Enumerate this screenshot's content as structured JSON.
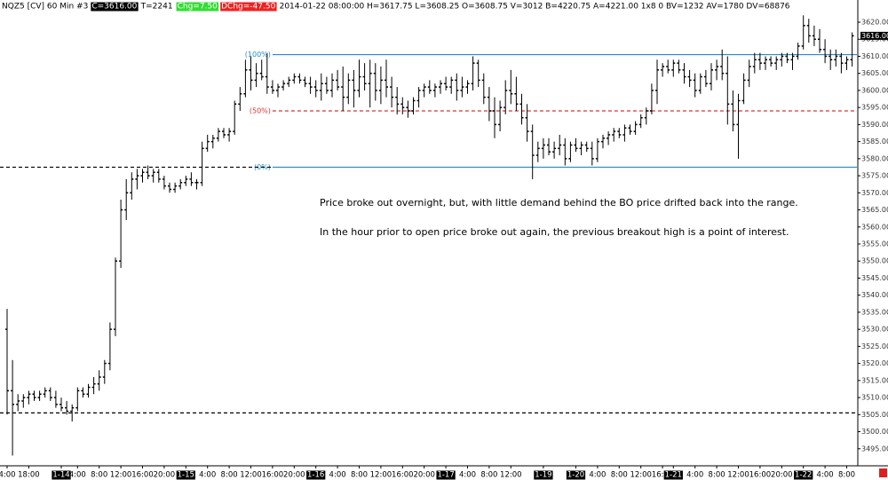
{
  "header": [
    {
      "text": "NQZ5 [CV]  60 Min  #3"
    },
    {
      "text": "C=3616.00",
      "bg": "#000000",
      "fg": "#ffffff"
    },
    {
      "text": "T=2241"
    },
    {
      "text": "Chg=7.50",
      "bg": "#33dd33",
      "fg": "#ffffff"
    },
    {
      "text": "DChg=-47.50",
      "bg": "#ee2222",
      "fg": "#ffffff"
    },
    {
      "text": "2014-01-22 08:00:00 H=3617.75 L=3608.25 O=3608.75 V=3012 B=4220.75 A=4221.00 1x8 0 BV=1232 AV=1780 DV=68876"
    }
  ],
  "chart_data": {
    "type": "ohlc",
    "color": "#000000",
    "categories": [
      "4:00",
      null,
      null,
      null,
      "18:00",
      null,
      null,
      null,
      null,
      null,
      "1-14",
      null,
      null,
      "4:00",
      null,
      null,
      null,
      "8:00",
      null,
      null,
      null,
      "12:00",
      null,
      null,
      null,
      "16:00",
      null,
      null,
      null,
      "20:00",
      null,
      null,
      null,
      "1-15",
      null,
      null,
      null,
      "4:00",
      null,
      null,
      null,
      "8:00",
      null,
      null,
      null,
      "12:00",
      null,
      null,
      null,
      "16:00",
      null,
      null,
      null,
      "20:00",
      null,
      null,
      null,
      "1-16",
      null,
      null,
      null,
      "4:00",
      null,
      null,
      null,
      "8:00",
      null,
      null,
      null,
      "12:00",
      null,
      null,
      null,
      "16:00",
      null,
      null,
      null,
      "20:00",
      null,
      null,
      null,
      "1-17",
      null,
      null,
      null,
      "4:00",
      null,
      null,
      null,
      "8:00",
      null,
      null,
      null,
      "12:00",
      null,
      null,
      null,
      null,
      null,
      "1-19",
      null,
      null,
      null,
      null,
      null,
      "1-20",
      null,
      null,
      null,
      "4:00",
      null,
      null,
      null,
      "8:00",
      null,
      null,
      null,
      "12:00",
      null,
      null,
      null,
      "16:00",
      null,
      "1-21",
      null,
      null,
      null,
      "4:00",
      null,
      null,
      null,
      "8:00",
      null,
      null,
      null,
      "12:00",
      null,
      null,
      null,
      "16:00",
      null,
      null,
      null,
      "20:00",
      null,
      null,
      null,
      "1-22",
      null,
      null,
      null,
      "4:00",
      null,
      null,
      null,
      "8:00",
      null
    ],
    "open": [
      3530,
      3512,
      3508,
      3509,
      3510,
      3511,
      3510,
      3511,
      3512,
      3510,
      3508,
      3507,
      3506,
      3507,
      3512,
      3511,
      3513,
      3514,
      3516,
      3520,
      3530,
      3550,
      3565,
      3570,
      3574,
      3575,
      3576,
      3575,
      3576,
      3574,
      3572,
      3571,
      3572,
      3573,
      3574,
      3573,
      3573,
      3583,
      3585,
      3586,
      3588,
      3587,
      3588,
      3596,
      3599,
      3606,
      3603,
      3605,
      3604,
      3601,
      3600,
      3601,
      3602,
      3603,
      3604,
      3603,
      3602,
      3601,
      3600,
      3602,
      3600,
      3603,
      3601,
      3598,
      3603,
      3600,
      3604,
      3602,
      3605,
      3600,
      3603,
      3601,
      3598,
      3596,
      3595,
      3594,
      3597,
      3600,
      3601,
      3600,
      3601,
      3602,
      3601,
      3603,
      3600,
      3601,
      3602,
      3608,
      3603,
      3598,
      3594,
      3590,
      3595,
      3600,
      3599,
      3596,
      3592,
      3588,
      3581,
      3583,
      3584,
      3582,
      3583,
      3584,
      3580,
      3584,
      3583,
      3584,
      3583,
      3580,
      3585,
      3586,
      3587,
      3588,
      3587,
      3589,
      3588,
      3590,
      3592,
      3594,
      3600,
      3606,
      3607,
      3606,
      3608,
      3606,
      3604,
      3603,
      3600,
      3604,
      3602,
      3606,
      3607,
      3605,
      3596,
      3590,
      3597,
      3603,
      3607,
      3609,
      3608,
      3609,
      3608,
      3609,
      3610,
      3609,
      3610,
      3613,
      3619,
      3616,
      3615,
      3612,
      3610,
      3609,
      3610,
      3608,
      3609
    ],
    "high": [
      3536,
      3521,
      3511,
      3511,
      3512,
      3512,
      3512,
      3513,
      3513,
      3512,
      3510,
      3509,
      3508,
      3513,
      3513,
      3514,
      3516,
      3518,
      3521,
      3532,
      3551,
      3568,
      3574,
      3576,
      3577,
      3577,
      3578,
      3577,
      3577,
      3575,
      3573,
      3573,
      3574,
      3575,
      3576,
      3574,
      3585,
      3587,
      3587,
      3589,
      3589,
      3589,
      3597,
      3601,
      3609,
      3610,
      3608,
      3609,
      3611,
      3603,
      3602,
      3603,
      3604,
      3605,
      3605,
      3604,
      3604,
      3603,
      3605,
      3604,
      3605,
      3606,
      3607,
      3605,
      3606,
      3609,
      3608,
      3609,
      3608,
      3607,
      3609,
      3604,
      3601,
      3598,
      3597,
      3598,
      3601,
      3602,
      3603,
      3602,
      3603,
      3604,
      3604,
      3605,
      3604,
      3603,
      3610,
      3609,
      3605,
      3601,
      3598,
      3597,
      3603,
      3606,
      3604,
      3599,
      3596,
      3590,
      3585,
      3586,
      3586,
      3585,
      3587,
      3586,
      3585,
      3586,
      3585,
      3585,
      3585,
      3586,
      3587,
      3588,
      3589,
      3589,
      3590,
      3590,
      3591,
      3593,
      3595,
      3602,
      3609,
      3608,
      3609,
      3609,
      3609,
      3608,
      3606,
      3605,
      3605,
      3606,
      3608,
      3609,
      3612,
      3610,
      3600,
      3599,
      3605,
      3609,
      3611,
      3611,
      3610,
      3610,
      3610,
      3611,
      3611,
      3611,
      3614,
      3622,
      3621,
      3619,
      3618,
      3615,
      3612,
      3612,
      3611,
      3610,
      3617
    ],
    "low": [
      3505,
      3493,
      3506,
      3507,
      3508,
      3509,
      3509,
      3510,
      3509,
      3507,
      3506,
      3505,
      3503,
      3506,
      3510,
      3510,
      3511,
      3512,
      3514,
      3518,
      3528,
      3548,
      3562,
      3568,
      3571,
      3573,
      3574,
      3573,
      3573,
      3571,
      3570,
      3570,
      3571,
      3572,
      3572,
      3571,
      3572,
      3582,
      3583,
      3585,
      3586,
      3585,
      3587,
      3594,
      3598,
      3600,
      3601,
      3603,
      3599,
      3599,
      3598,
      3600,
      3601,
      3602,
      3602,
      3601,
      3599,
      3598,
      3597,
      3599,
      3598,
      3600,
      3594,
      3596,
      3595,
      3598,
      3600,
      3595,
      3597,
      3596,
      3598,
      3595,
      3593,
      3593,
      3592,
      3593,
      3595,
      3598,
      3599,
      3598,
      3599,
      3600,
      3599,
      3597,
      3598,
      3599,
      3600,
      3601,
      3596,
      3591,
      3586,
      3588,
      3593,
      3596,
      3594,
      3590,
      3585,
      3574,
      3579,
      3580,
      3581,
      3580,
      3581,
      3578,
      3579,
      3582,
      3581,
      3582,
      3578,
      3579,
      3583,
      3584,
      3585,
      3586,
      3585,
      3587,
      3587,
      3589,
      3590,
      3593,
      3596,
      3604,
      3605,
      3604,
      3605,
      3602,
      3601,
      3598,
      3599,
      3601,
      3600,
      3603,
      3603,
      3590,
      3588,
      3580,
      3596,
      3601,
      3605,
      3606,
      3606,
      3607,
      3606,
      3607,
      3608,
      3606,
      3609,
      3612,
      3614,
      3613,
      3611,
      3608,
      3606,
      3607,
      3605,
      3606,
      3607
    ],
    "close": [
      3512,
      3508,
      3509,
      3510,
      3511,
      3510,
      3511,
      3512,
      3510,
      3508,
      3507,
      3506,
      3507,
      3512,
      3511,
      3513,
      3514,
      3516,
      3520,
      3530,
      3550,
      3565,
      3570,
      3574,
      3575,
      3576,
      3575,
      3576,
      3574,
      3572,
      3571,
      3572,
      3573,
      3574,
      3573,
      3573,
      3583,
      3585,
      3586,
      3588,
      3587,
      3588,
      3596,
      3599,
      3606,
      3603,
      3605,
      3604,
      3601,
      3600,
      3601,
      3602,
      3603,
      3604,
      3603,
      3602,
      3601,
      3600,
      3602,
      3600,
      3603,
      3601,
      3598,
      3603,
      3600,
      3604,
      3602,
      3605,
      3600,
      3603,
      3601,
      3598,
      3596,
      3595,
      3594,
      3597,
      3600,
      3601,
      3600,
      3601,
      3602,
      3601,
      3603,
      3600,
      3601,
      3602,
      3608,
      3603,
      3598,
      3594,
      3590,
      3595,
      3600,
      3599,
      3596,
      3592,
      3588,
      3581,
      3583,
      3584,
      3582,
      3583,
      3584,
      3580,
      3584,
      3583,
      3584,
      3583,
      3580,
      3585,
      3586,
      3587,
      3588,
      3587,
      3589,
      3588,
      3590,
      3592,
      3594,
      3600,
      3606,
      3607,
      3606,
      3608,
      3606,
      3604,
      3603,
      3600,
      3604,
      3602,
      3606,
      3607,
      3605,
      3596,
      3590,
      3597,
      3603,
      3607,
      3609,
      3608,
      3609,
      3608,
      3609,
      3610,
      3609,
      3610,
      3613,
      3619,
      3616,
      3615,
      3612,
      3610,
      3609,
      3610,
      3608,
      3609,
      3616
    ],
    "ylim": [
      3490,
      3626.5
    ],
    "yticks": [
      {
        "value": 3495,
        "label": "3495.00"
      },
      {
        "value": 3500,
        "label": "3500.00"
      },
      {
        "value": 3505,
        "label": "3505.00"
      },
      {
        "value": 3510,
        "label": "3510.00"
      },
      {
        "value": 3515,
        "label": "3515.00"
      },
      {
        "value": 3520,
        "label": "3520.00"
      },
      {
        "value": 3525,
        "label": "3525.00"
      },
      {
        "value": 3530,
        "label": "3530.00"
      },
      {
        "value": 3535,
        "label": "3535.00"
      },
      {
        "value": 3540,
        "label": "3540.00"
      },
      {
        "value": 3545,
        "label": "3545.00"
      },
      {
        "value": 3550,
        "label": "3550.00"
      },
      {
        "value": 3555,
        "label": "3555.00"
      },
      {
        "value": 3560,
        "label": "3560.00"
      },
      {
        "value": 3565,
        "label": "3565.00"
      },
      {
        "value": 3570,
        "label": "3570.00"
      },
      {
        "value": 3575,
        "label": "3575.00"
      },
      {
        "value": 3580,
        "label": "3580.00"
      },
      {
        "value": 3585,
        "label": "3585.00"
      },
      {
        "value": 3590,
        "label": "3590.00"
      },
      {
        "value": 3595,
        "label": "3595.00"
      },
      {
        "value": 3600,
        "label": "3600.00"
      },
      {
        "value": 3605,
        "label": "3605.00"
      },
      {
        "value": 3610,
        "label": "3610.00"
      },
      {
        "value": 3615,
        "label": "3615.00"
      },
      {
        "value": 3620,
        "label": "3620.00"
      }
    ],
    "last_price": {
      "value": 3616,
      "label": "3616.00"
    },
    "levels": [
      {
        "label": "(100%)",
        "value": 3610.5,
        "color": "#1f8fd0",
        "style": "solid",
        "from_bar": 49
      },
      {
        "label": "(50%)",
        "value": 3594,
        "color": "#e03030",
        "style": "dashed",
        "from_bar": 49
      },
      {
        "label": "(0%)",
        "value": 3577.5,
        "color": "#1f8fd0",
        "style": "solid",
        "from_bar": 49
      },
      {
        "value": 3577.5,
        "color": "#000000",
        "style": "dashed",
        "to_bar": 49
      },
      {
        "value": 3505.5,
        "color": "#000000",
        "style": "dashed"
      }
    ],
    "annotations": [
      "Price broke out overnight, but, with little demand behind the BO price drifted back into the range.",
      "In the hour prior to open price broke out again, the previous breakout high is a point of interest."
    ]
  }
}
